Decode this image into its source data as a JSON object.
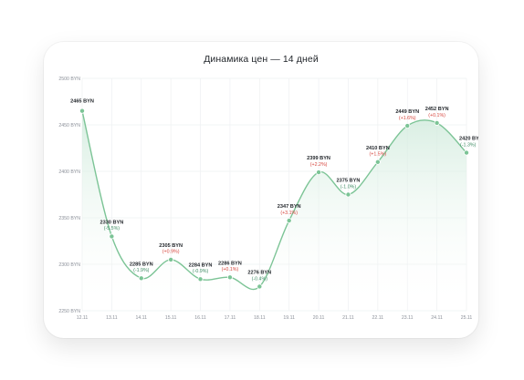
{
  "chart_data": {
    "type": "line",
    "title": "Динамика цен — 14 дней",
    "x": [
      "12.11",
      "13.11",
      "14.11",
      "15.11",
      "16.11",
      "17.11",
      "18.11",
      "19.11",
      "20.11",
      "21.11",
      "22.11",
      "23.11",
      "24.11",
      "25.11"
    ],
    "values": [
      2465,
      2330,
      2285,
      2305,
      2284,
      2286,
      2276,
      2347,
      2399,
      2375,
      2410,
      2449,
      2452,
      2420
    ],
    "price_labels": [
      "2465 BYN",
      "2330 BYN",
      "2285 BYN",
      "2305 BYN",
      "2284 BYN",
      "2286 BYN",
      "2276 BYN",
      "2347 BYN",
      "2399 BYN",
      "2375 BYN",
      "2410 BYN",
      "2449 BYN",
      "2452 BYN",
      "2420 BY"
    ],
    "change_labels": [
      "",
      "(-5.5%)",
      "(-1.9%)",
      "(+0.9%)",
      "(-0.9%)",
      "(+0.1%)",
      "(-0.4%)",
      "(+3.1%)",
      "(+2.2%)",
      "(-1.0%)",
      "(+1.5%)",
      "(+1.6%)",
      "(+0.1%)",
      "(-1.3%)"
    ],
    "y_ticks": [
      "2250 BYN",
      "2300 BYN",
      "2350 BYN",
      "2400 BYN",
      "2450 BYN",
      "2500 BYN"
    ],
    "y_tick_values": [
      2250,
      2300,
      2350,
      2400,
      2450,
      2500
    ],
    "ylim": [
      2250,
      2500
    ],
    "grid": true,
    "colors": {
      "line": "#7cc496",
      "point": "#7cc496",
      "fill": "#d9efe1",
      "positive": "#d6453d",
      "negative": "#3e8b63"
    }
  }
}
